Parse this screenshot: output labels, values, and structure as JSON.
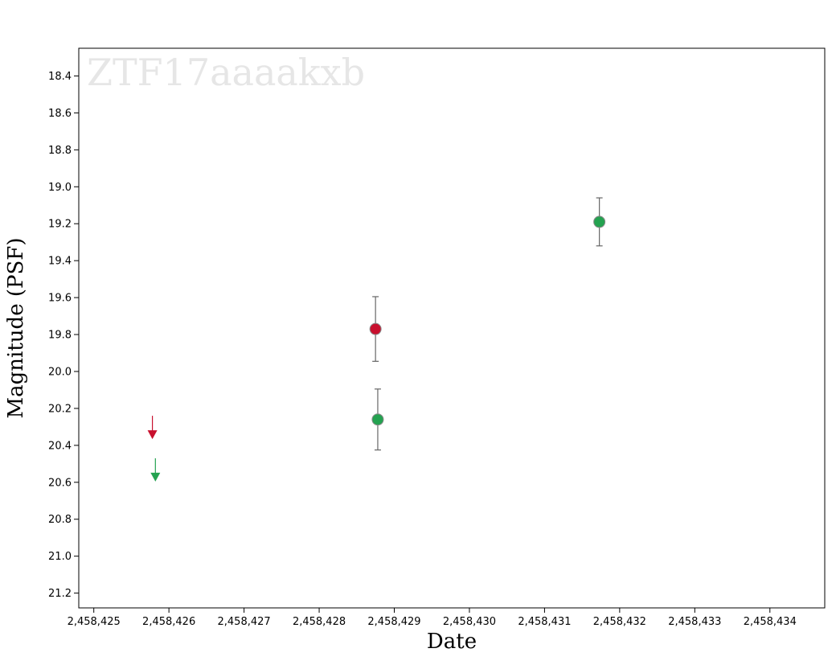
{
  "chart_data": {
    "type": "scatter",
    "watermark": "ZTF17aaaakxb",
    "xlabel": "Date",
    "ylabel": "Magnitude (PSF)",
    "x_ticks": [
      2458425,
      2458426,
      2458427,
      2458428,
      2458429,
      2458430,
      2458431,
      2458432,
      2458433,
      2458434
    ],
    "x_tick_labels": [
      "2,458,425",
      "2,458,426",
      "2,458,427",
      "2,458,428",
      "2,458,429",
      "2,458,430",
      "2,458,431",
      "2,458,432",
      "2,458,433",
      "2,458,434"
    ],
    "xlim": [
      2458424.8,
      2458434.73
    ],
    "y_ticks": [
      18.4,
      18.6,
      18.8,
      19.0,
      19.2,
      19.4,
      19.6,
      19.8,
      20.0,
      20.2,
      20.4,
      20.6,
      20.8,
      21.0,
      21.2
    ],
    "y_tick_labels": [
      "18.4",
      "18.6",
      "18.8",
      "19.0",
      "19.2",
      "19.4",
      "19.6",
      "19.8",
      "20.0",
      "20.2",
      "20.4",
      "20.6",
      "20.8",
      "21.0",
      "21.2"
    ],
    "ylim": [
      18.25,
      21.28
    ],
    "y_inverted": true,
    "grid": false,
    "series": [
      {
        "color": "#c8102e",
        "detections": [
          {
            "x": 2458428.75,
            "y": 19.77,
            "err": 0.175
          }
        ],
        "upper_limits": [
          {
            "x": 2458425.78,
            "y": 20.34
          }
        ]
      },
      {
        "color": "#24a250",
        "detections": [
          {
            "x": 2458428.78,
            "y": 20.26,
            "err": 0.165
          },
          {
            "x": 2458431.73,
            "y": 19.19,
            "err": 0.13
          }
        ],
        "upper_limits": [
          {
            "x": 2458425.82,
            "y": 20.57
          }
        ]
      }
    ]
  }
}
